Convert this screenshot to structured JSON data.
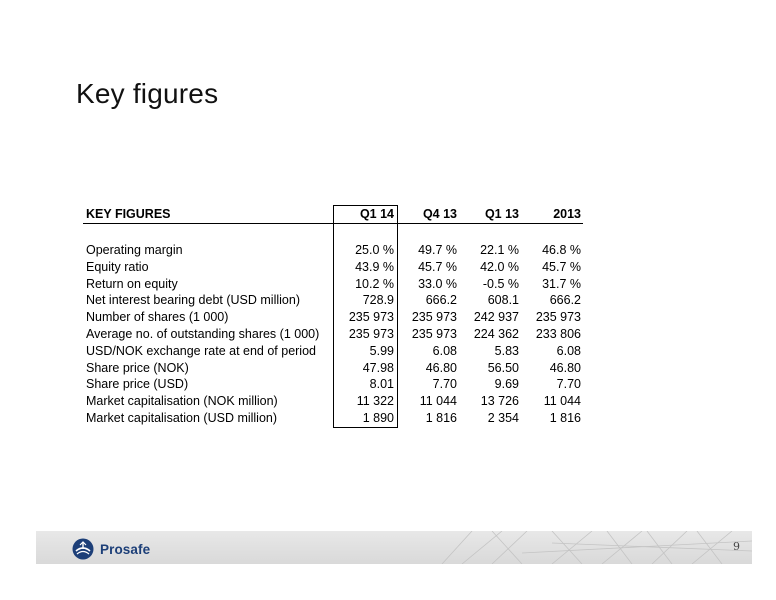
{
  "page": {
    "title": "Key figures",
    "page_number": "9"
  },
  "table": {
    "header": {
      "label": "KEY FIGURES",
      "columns": [
        "Q1 14",
        "Q4 13",
        "Q1 13",
        "2013"
      ]
    },
    "rows": [
      {
        "label": "Operating margin",
        "values": [
          "25.0 %",
          "49.7 %",
          "22.1 %",
          "46.8 %"
        ]
      },
      {
        "label": "Equity ratio",
        "values": [
          "43.9 %",
          "45.7 %",
          "42.0 %",
          "45.7 %"
        ]
      },
      {
        "label": "Return on equity",
        "values": [
          "10.2 %",
          "33.0 %",
          "-0.5 %",
          "31.7 %"
        ]
      },
      {
        "label": "Net interest bearing debt (USD million)",
        "values": [
          "728.9",
          "666.2",
          "608.1",
          "666.2"
        ]
      },
      {
        "label": "Number of shares (1 000)",
        "values": [
          "235 973",
          "235 973",
          "242 937",
          "235 973"
        ]
      },
      {
        "label": "Average no. of outstanding shares (1 000)",
        "values": [
          "235 973",
          "235 973",
          "224 362",
          "233 806"
        ]
      },
      {
        "label": "USD/NOK exchange rate at end of period",
        "values": [
          "5.99",
          "6.08",
          "5.83",
          "6.08"
        ]
      },
      {
        "label": "Share price (NOK)",
        "values": [
          "47.98",
          "46.80",
          "56.50",
          "46.80"
        ]
      },
      {
        "label": "Share price (USD)",
        "values": [
          "8.01",
          "7.70",
          "9.69",
          "7.70"
        ]
      },
      {
        "label": "Market capitalisation (NOK million)",
        "values": [
          "11 322",
          "11 044",
          "13 726",
          "11 044"
        ]
      },
      {
        "label": "Market capitalisation (USD million)",
        "values": [
          "1 890",
          "1 816",
          "2 354",
          "1 816"
        ]
      }
    ]
  },
  "footer": {
    "brand": "Prosafe",
    "logo_icon": "prosafe-logo-icon",
    "brand_color": "#1d3f78"
  }
}
